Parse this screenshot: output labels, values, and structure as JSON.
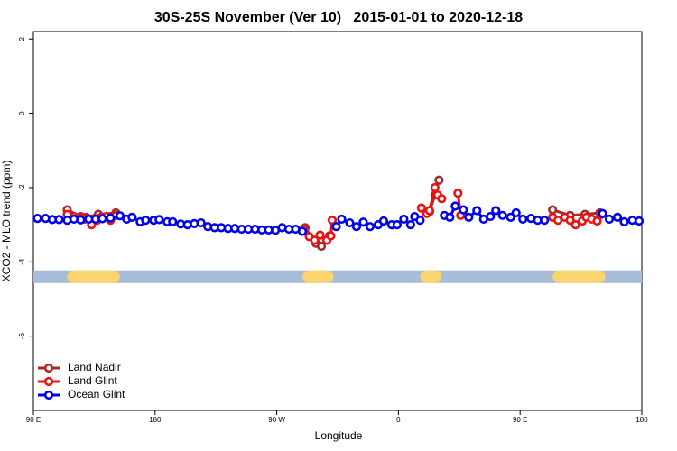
{
  "chart_data": {
    "type": "line",
    "title": "30S-25S November (Ver 10)   2015-01-01 to 2020-12-18",
    "x_label": "Longitude",
    "y_label": "XCO2 - MLO trend (ppm)",
    "xlim": [
      90,
      540
    ],
    "ylim": [
      -8,
      2.2
    ],
    "xticks": [
      {
        "value": 90,
        "label": "90 E"
      },
      {
        "value": 180,
        "label": "180"
      },
      {
        "value": 270,
        "label": "90 W"
      },
      {
        "value": 360,
        "label": "0"
      },
      {
        "value": 450,
        "label": "90 E"
      },
      {
        "value": 540,
        "label": "180"
      }
    ],
    "yticks": [
      2,
      0,
      -2,
      -4,
      -6
    ],
    "legend": "bottom-left",
    "land_band": {
      "y": -4.4,
      "color": "#a6bcd9",
      "land_color": "#fad46c",
      "segments": [
        [
          115,
          154
        ],
        [
          289,
          312
        ],
        [
          376,
          392
        ],
        [
          474,
          513
        ]
      ]
    },
    "series": [
      {
        "name": "Land Nadir",
        "color": "#a52a2a",
        "x": [
          115,
          125,
          129,
          138,
          151,
          null,
          291,
          299,
          303,
          309,
          null,
          383,
          387,
          390,
          null,
          474,
          487,
          498,
          509
        ],
        "values": [
          -2.6,
          -2.78,
          -2.8,
          -2.72,
          -2.68,
          null,
          -3.08,
          -3.5,
          -3.58,
          -3.3,
          null,
          -2.65,
          -2.2,
          -1.8,
          null,
          -2.6,
          -2.75,
          -2.72,
          -2.68
        ]
      },
      {
        "name": "Land Glint",
        "color": "#ee1111",
        "x": [
          115,
          120,
          125,
          128,
          133,
          137,
          140,
          144,
          147,
          151,
          null,
          290,
          294,
          298,
          302,
          307,
          310,
          311,
          null,
          377,
          381,
          383,
          387,
          389,
          392,
          null,
          404,
          406,
          null,
          474,
          478,
          483,
          487,
          491,
          496,
          499,
          503,
          507,
          510
        ],
        "values": [
          -2.72,
          -2.78,
          -2.82,
          -2.85,
          -3.0,
          -2.88,
          -2.8,
          -2.78,
          -2.88,
          -2.75,
          null,
          -3.12,
          -3.32,
          -3.42,
          -3.28,
          -3.42,
          -3.3,
          -2.88,
          null,
          -2.55,
          -2.7,
          -2.62,
          -2.0,
          -2.2,
          -2.3,
          null,
          -2.15,
          -2.75,
          null,
          -2.8,
          -2.88,
          -2.8,
          -2.88,
          -3.0,
          -2.9,
          -2.8,
          -2.85,
          -2.9,
          -2.72
        ]
      },
      {
        "name": "Ocean Glint",
        "color": "#0000ee",
        "x": [
          93,
          99,
          104,
          109,
          115,
          120,
          125,
          131,
          136,
          141,
          147,
          154,
          159,
          163,
          169,
          173,
          179,
          183,
          189,
          193,
          199,
          204,
          209,
          214,
          219,
          224,
          229,
          234,
          239,
          244,
          249,
          254,
          259,
          264,
          269,
          274,
          279,
          284,
          289,
          null,
          314,
          318,
          324,
          329,
          334,
          339,
          345,
          349,
          355,
          359,
          364,
          369,
          372,
          376,
          null,
          394,
          398,
          402,
          408,
          412,
          418,
          423,
          428,
          432,
          437,
          443,
          447,
          452,
          458,
          463,
          468,
          null,
          511,
          516,
          522,
          527,
          533,
          538
        ],
        "values": [
          -2.83,
          -2.83,
          -2.86,
          -2.86,
          -2.88,
          -2.85,
          -2.87,
          -2.85,
          -2.85,
          -2.84,
          -2.82,
          -2.76,
          -2.85,
          -2.8,
          -2.92,
          -2.88,
          -2.88,
          -2.86,
          -2.92,
          -2.92,
          -2.98,
          -3.0,
          -2.97,
          -2.95,
          -3.05,
          -3.08,
          -3.08,
          -3.1,
          -3.1,
          -3.12,
          -3.12,
          -3.12,
          -3.14,
          -3.14,
          -3.15,
          -3.08,
          -3.12,
          -3.12,
          -3.18,
          null,
          -3.05,
          -2.85,
          -2.95,
          -3.05,
          -2.93,
          -3.05,
          -3.0,
          -2.9,
          -3.0,
          -3.0,
          -2.85,
          -3.0,
          -2.78,
          -2.88,
          null,
          -2.75,
          -2.8,
          -2.5,
          -2.6,
          -2.8,
          -2.62,
          -2.85,
          -2.78,
          -2.62,
          -2.75,
          -2.8,
          -2.68,
          -2.85,
          -2.83,
          -2.88,
          -2.88,
          null,
          -2.7,
          -2.85,
          -2.8,
          -2.92,
          -2.88,
          -2.9
        ]
      }
    ]
  }
}
